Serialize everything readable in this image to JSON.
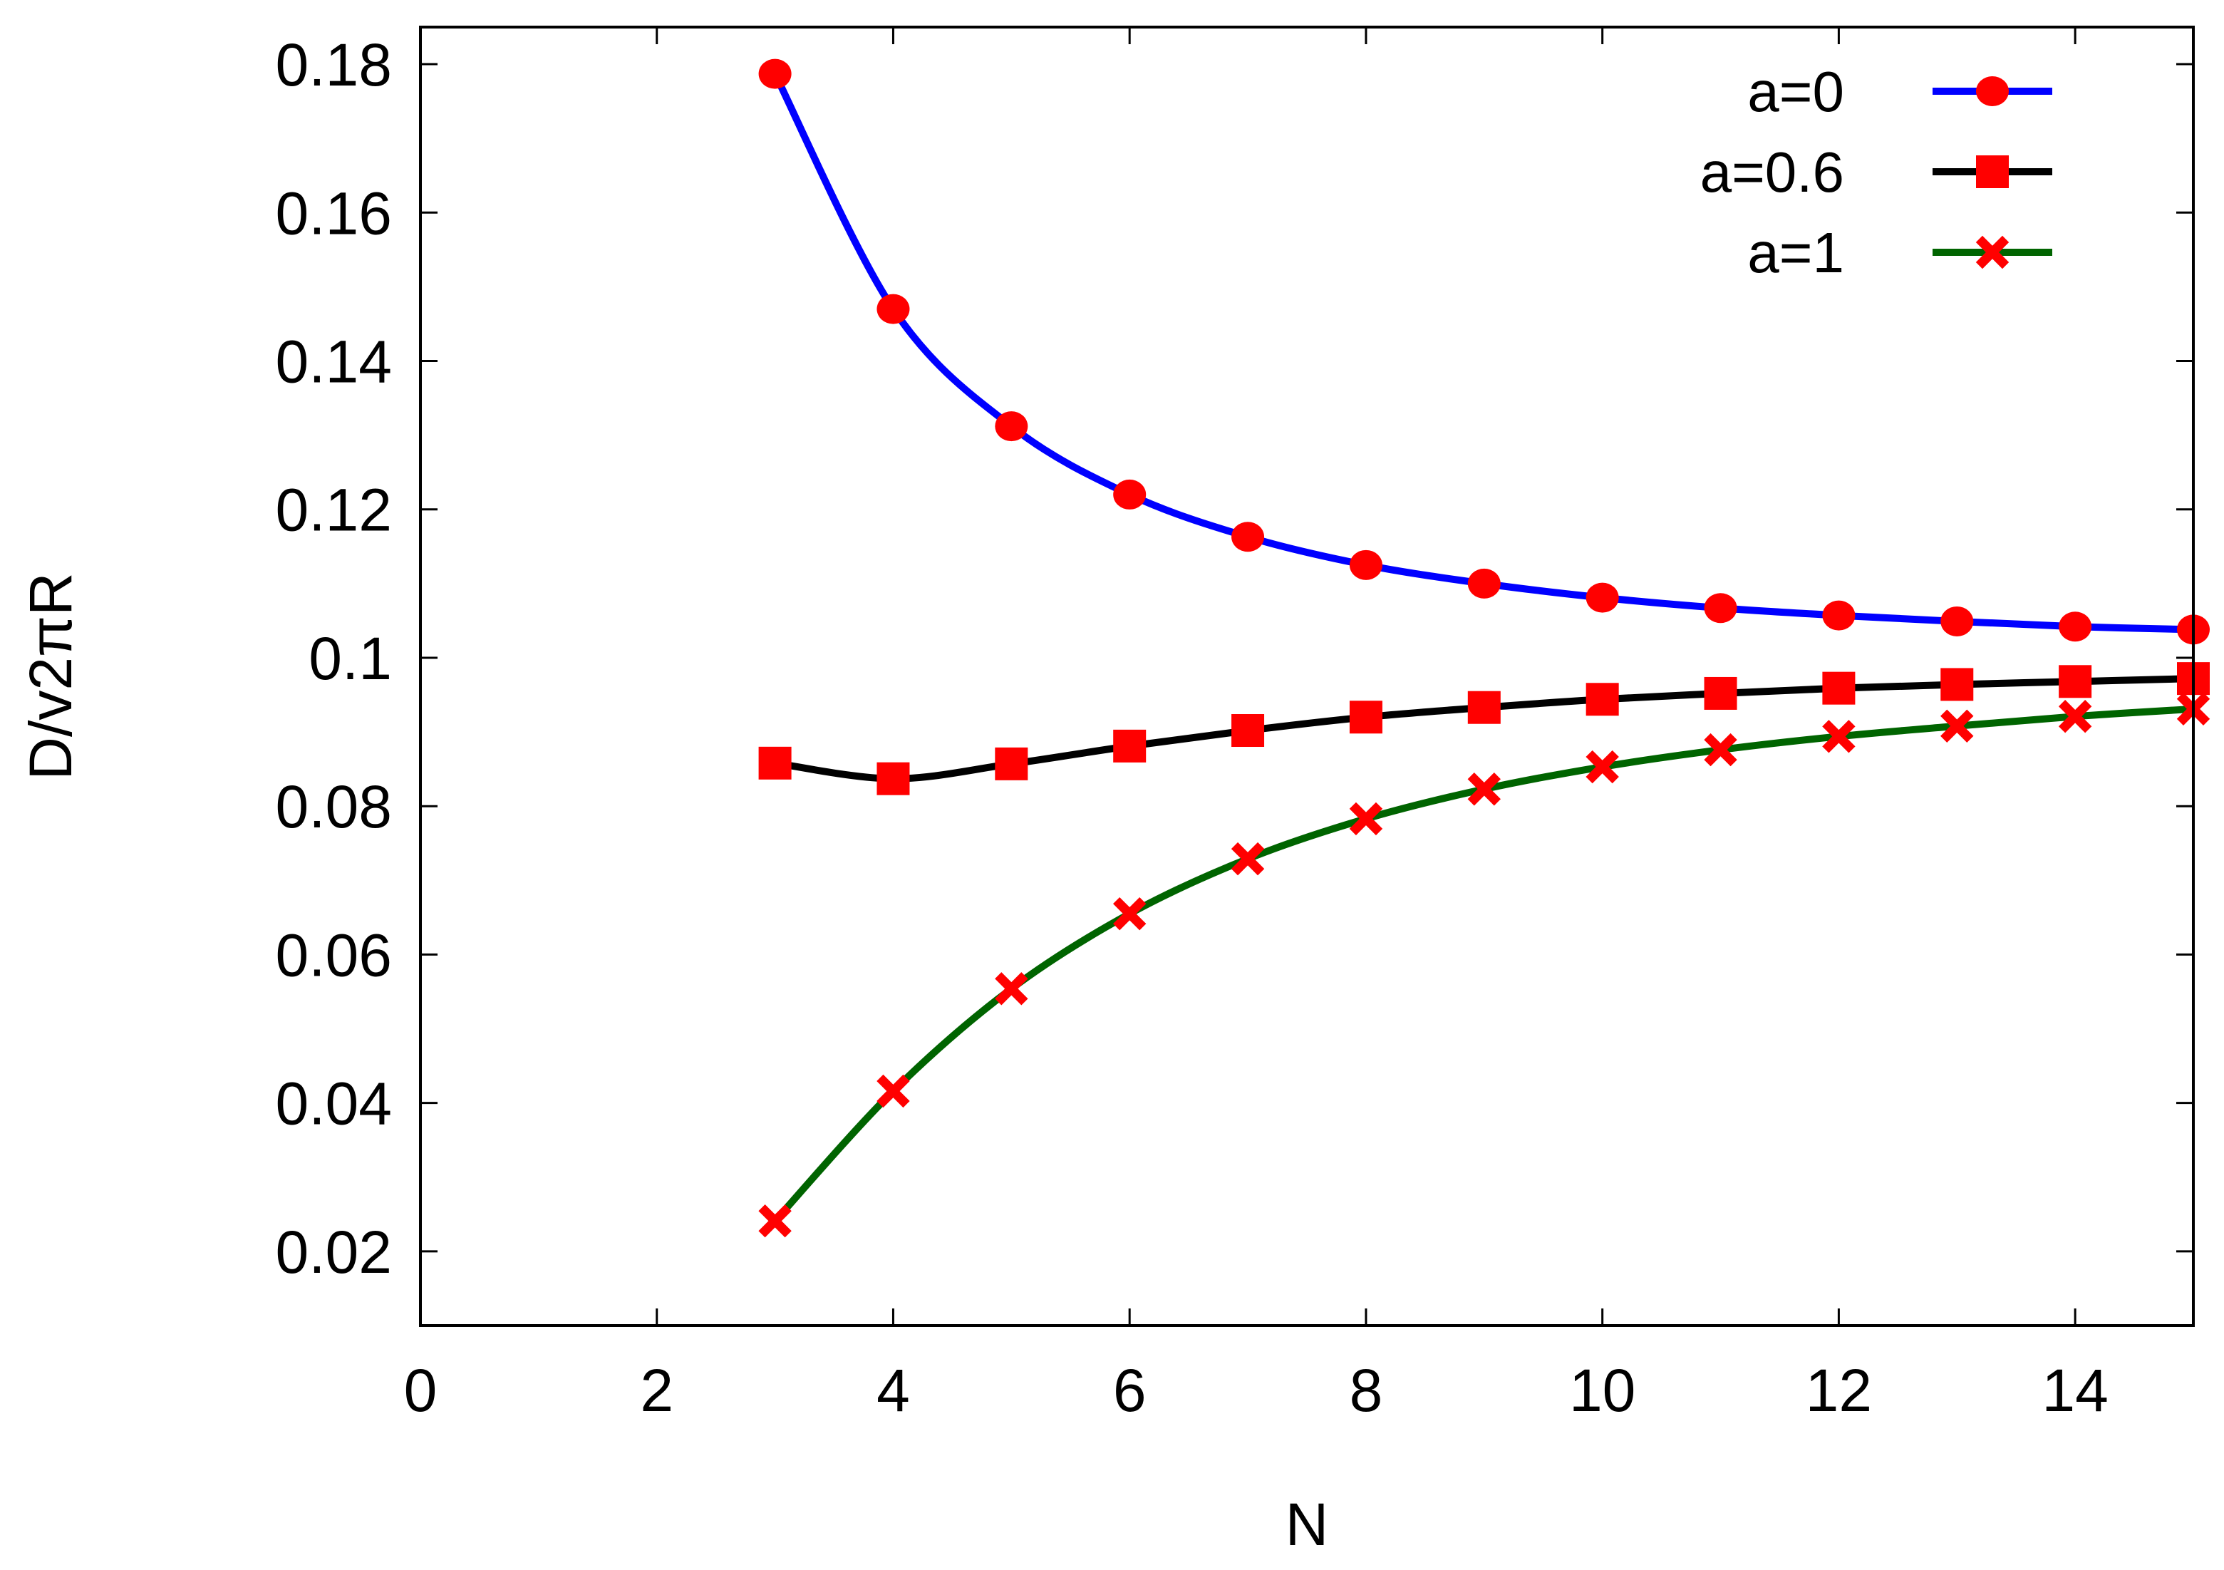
{
  "chart_data": {
    "type": "line",
    "title": "",
    "xlabel": "N",
    "ylabel": "D/v2πR",
    "xlim": [
      0,
      15
    ],
    "ylim": [
      0.01,
      0.185
    ],
    "xticks": [
      0,
      2,
      4,
      6,
      8,
      10,
      12,
      14
    ],
    "xtick_labels": [
      "0",
      "2",
      "4",
      "6",
      "8",
      "10",
      "12",
      "14"
    ],
    "yticks": [
      0.02,
      0.04,
      0.06,
      0.08,
      0.1,
      0.12,
      0.14,
      0.16,
      0.18
    ],
    "ytick_labels": [
      "0.02",
      "0.04",
      "0.06",
      "0.08",
      "0.1",
      "0.12",
      "0.14",
      "0.16",
      "0.18"
    ],
    "grid": false,
    "legend_position": "top-right",
    "x": [
      3,
      4,
      5,
      6,
      7,
      8,
      9,
      10,
      11,
      12,
      13,
      14,
      15
    ],
    "series": [
      {
        "name": "a=0",
        "marker": "circle",
        "line_color": "#0000ff",
        "marker_color": "#ff0000",
        "values": [
          0.1787,
          0.147,
          0.1312,
          0.122,
          0.1163,
          0.1125,
          0.11,
          0.1081,
          0.1067,
          0.1057,
          0.1049,
          0.1042,
          0.1038
        ]
      },
      {
        "name": "a=0.6",
        "marker": "square",
        "line_color": "#000000",
        "marker_color": "#ff0000",
        "values": [
          0.0858,
          0.0837,
          0.0857,
          0.0881,
          0.0902,
          0.092,
          0.0933,
          0.0944,
          0.0952,
          0.0959,
          0.0964,
          0.0968,
          0.0972
        ]
      },
      {
        "name": "a=1",
        "marker": "cross",
        "line_color": "#006400",
        "marker_color": "#ff0000",
        "values": [
          0.0241,
          0.0416,
          0.0554,
          0.0655,
          0.0729,
          0.0783,
          0.0823,
          0.0853,
          0.0876,
          0.0894,
          0.0908,
          0.0921,
          0.0931
        ]
      }
    ]
  }
}
